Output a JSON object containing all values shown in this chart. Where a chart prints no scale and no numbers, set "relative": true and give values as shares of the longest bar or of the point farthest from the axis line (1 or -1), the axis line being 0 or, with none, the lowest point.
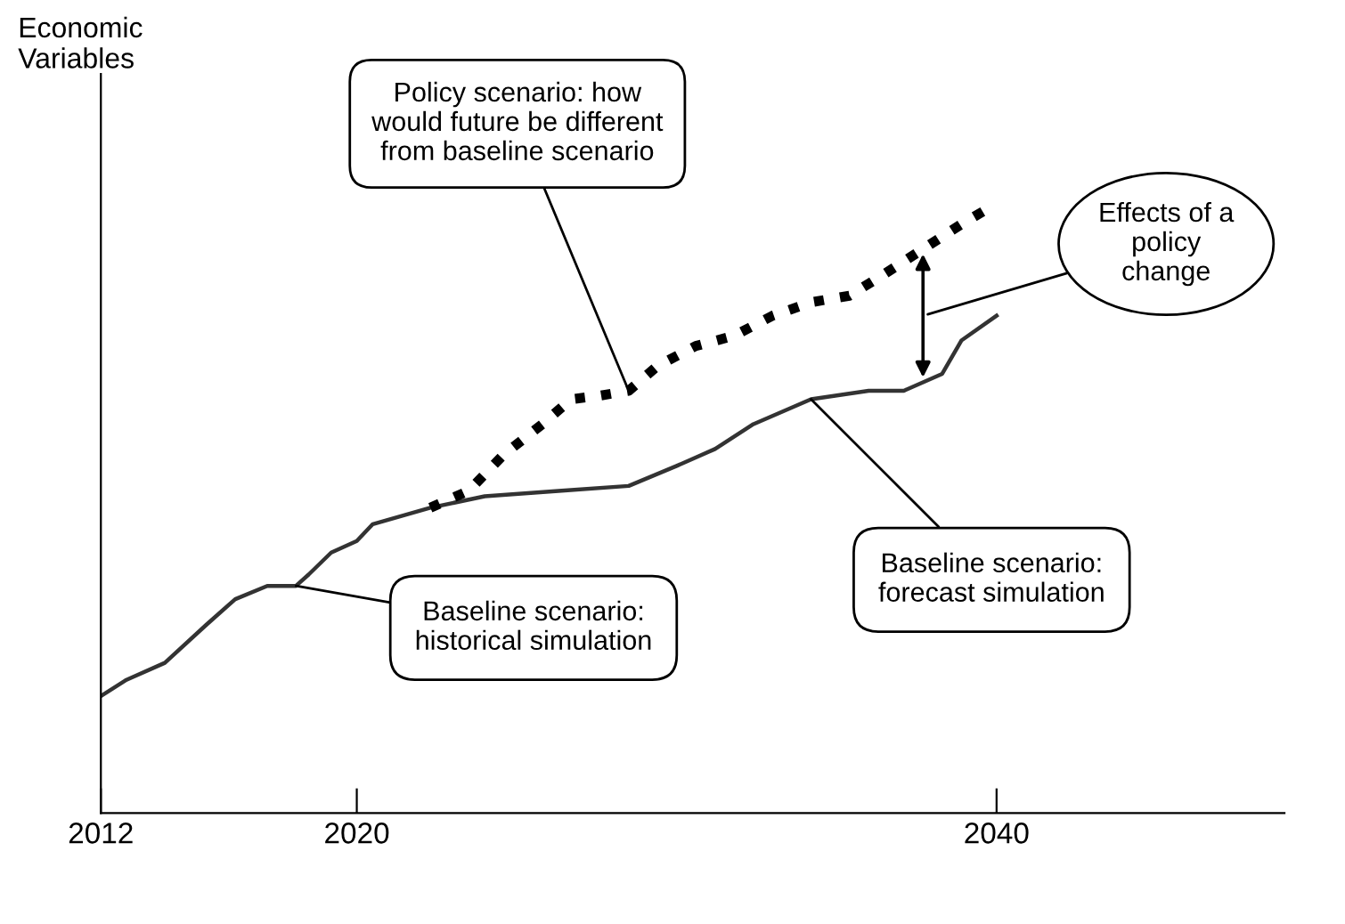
{
  "chart_data": {
    "type": "line",
    "relative": true,
    "ylabel": "Economic\nVariables",
    "xlim": [
      2012,
      2049
    ],
    "xticks": [
      2012,
      2020,
      2040
    ],
    "grid": false,
    "legend": false,
    "series": [
      {
        "color": "#333333",
        "line_style": "solid",
        "x": [
          2012,
          2012.8,
          2014.0,
          2015.3,
          2016.2,
          2017.2,
          2018.1,
          2018.5,
          2019.2,
          2020,
          2020.5,
          2022.3,
          2024.0,
          2026.4,
          2028.5,
          2030.0,
          2031.2,
          2032.4,
          2034.2,
          2036.0,
          2037.1,
          2038.3,
          2038.9,
          2040
        ],
        "values": [
          0.193,
          0.22,
          0.248,
          0.311,
          0.353,
          0.375,
          0.375,
          0.394,
          0.43,
          0.449,
          0.477,
          0.504,
          0.523,
          0.532,
          0.54,
          0.573,
          0.601,
          0.642,
          0.683,
          0.697,
          0.697,
          0.725,
          0.78,
          0.821
        ]
      },
      {
        "color": "#000000",
        "line_style": "dotted",
        "x": [
          2022.3,
          2023.5,
          2024.6,
          2025.8,
          2026.7,
          2027.6,
          2028.5,
          2029.4,
          2030.6,
          2031.8,
          2033.0,
          2034.2,
          2035.4,
          2036.5,
          2037.7,
          2038.9,
          2039.8
        ],
        "values": [
          0.504,
          0.532,
          0.592,
          0.642,
          0.683,
          0.689,
          0.697,
          0.738,
          0.771,
          0.788,
          0.821,
          0.843,
          0.854,
          0.89,
          0.931,
          0.972,
          1
        ]
      }
    ],
    "annotations": [
      {
        "text": "Policy scenario: how\nwould future be different\nfrom baseline scenario",
        "x": 2028.5,
        "y": 0.697
      },
      {
        "text": "Baseline scenario:\nhistorical simulation",
        "x": 2018.1,
        "y": 0.375
      },
      {
        "text": "Baseline scenario:\nforecast simulation",
        "x": 2034.2,
        "y": 0.683
      },
      "Effects of a\npolicy\nchange"
    ]
  }
}
